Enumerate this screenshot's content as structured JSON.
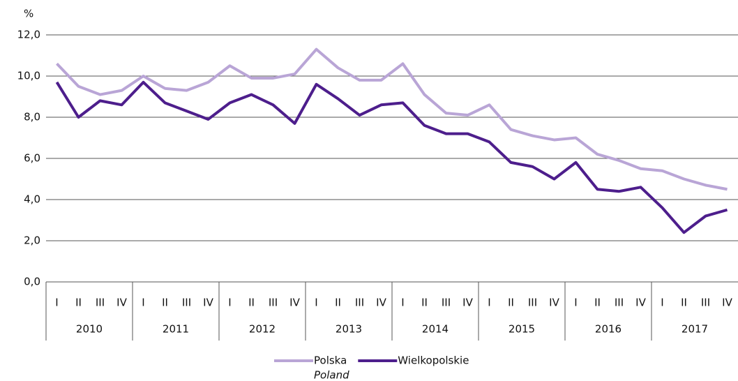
{
  "chart_data": {
    "type": "line",
    "y_axis_label": "%",
    "categories": [
      "I",
      "II",
      "III",
      "IV",
      "I",
      "II",
      "III",
      "IV",
      "I",
      "II",
      "III",
      "IV",
      "I",
      "II",
      "III",
      "IV",
      "I",
      "II",
      "III",
      "IV",
      "I",
      "II",
      "III",
      "IV",
      "I",
      "II",
      "III",
      "IV",
      "I",
      "II",
      "III",
      "IV"
    ],
    "years": [
      "2010",
      "2011",
      "2012",
      "2013",
      "2014",
      "2015",
      "2016",
      "2017"
    ],
    "series": [
      {
        "name": "Polska",
        "name_translation": "Poland",
        "color": "#b9a5d6",
        "values": [
          10.6,
          9.5,
          9.1,
          9.3,
          10.0,
          9.4,
          9.3,
          9.7,
          10.5,
          9.9,
          9.9,
          10.1,
          11.3,
          10.4,
          9.8,
          9.8,
          10.6,
          9.1,
          8.2,
          8.1,
          8.6,
          7.4,
          7.1,
          6.9,
          7.0,
          6.2,
          5.9,
          5.5,
          5.4,
          5.0,
          4.7,
          4.5
        ]
      },
      {
        "name": "Wielkopolskie",
        "color": "#4d1e8c",
        "values": [
          9.7,
          8.0,
          8.8,
          8.6,
          9.7,
          8.7,
          8.3,
          7.9,
          8.7,
          9.1,
          8.6,
          7.7,
          9.6,
          8.9,
          8.1,
          8.6,
          8.7,
          7.6,
          7.2,
          7.2,
          6.8,
          5.8,
          5.6,
          5.0,
          5.8,
          4.5,
          4.4,
          4.6,
          3.6,
          2.4,
          3.2,
          3.5
        ]
      }
    ],
    "ylim": [
      0,
      12
    ],
    "yticks": [
      {
        "value": 0,
        "label": "0,0"
      },
      {
        "value": 2,
        "label": "2,0"
      },
      {
        "value": 4,
        "label": "4,0"
      },
      {
        "value": 6,
        "label": "6,0"
      },
      {
        "value": 8,
        "label": "8,0"
      },
      {
        "value": 10,
        "label": "10,0"
      },
      {
        "value": 12,
        "label": "12,0"
      }
    ],
    "grid": true,
    "legend": "bottom"
  }
}
